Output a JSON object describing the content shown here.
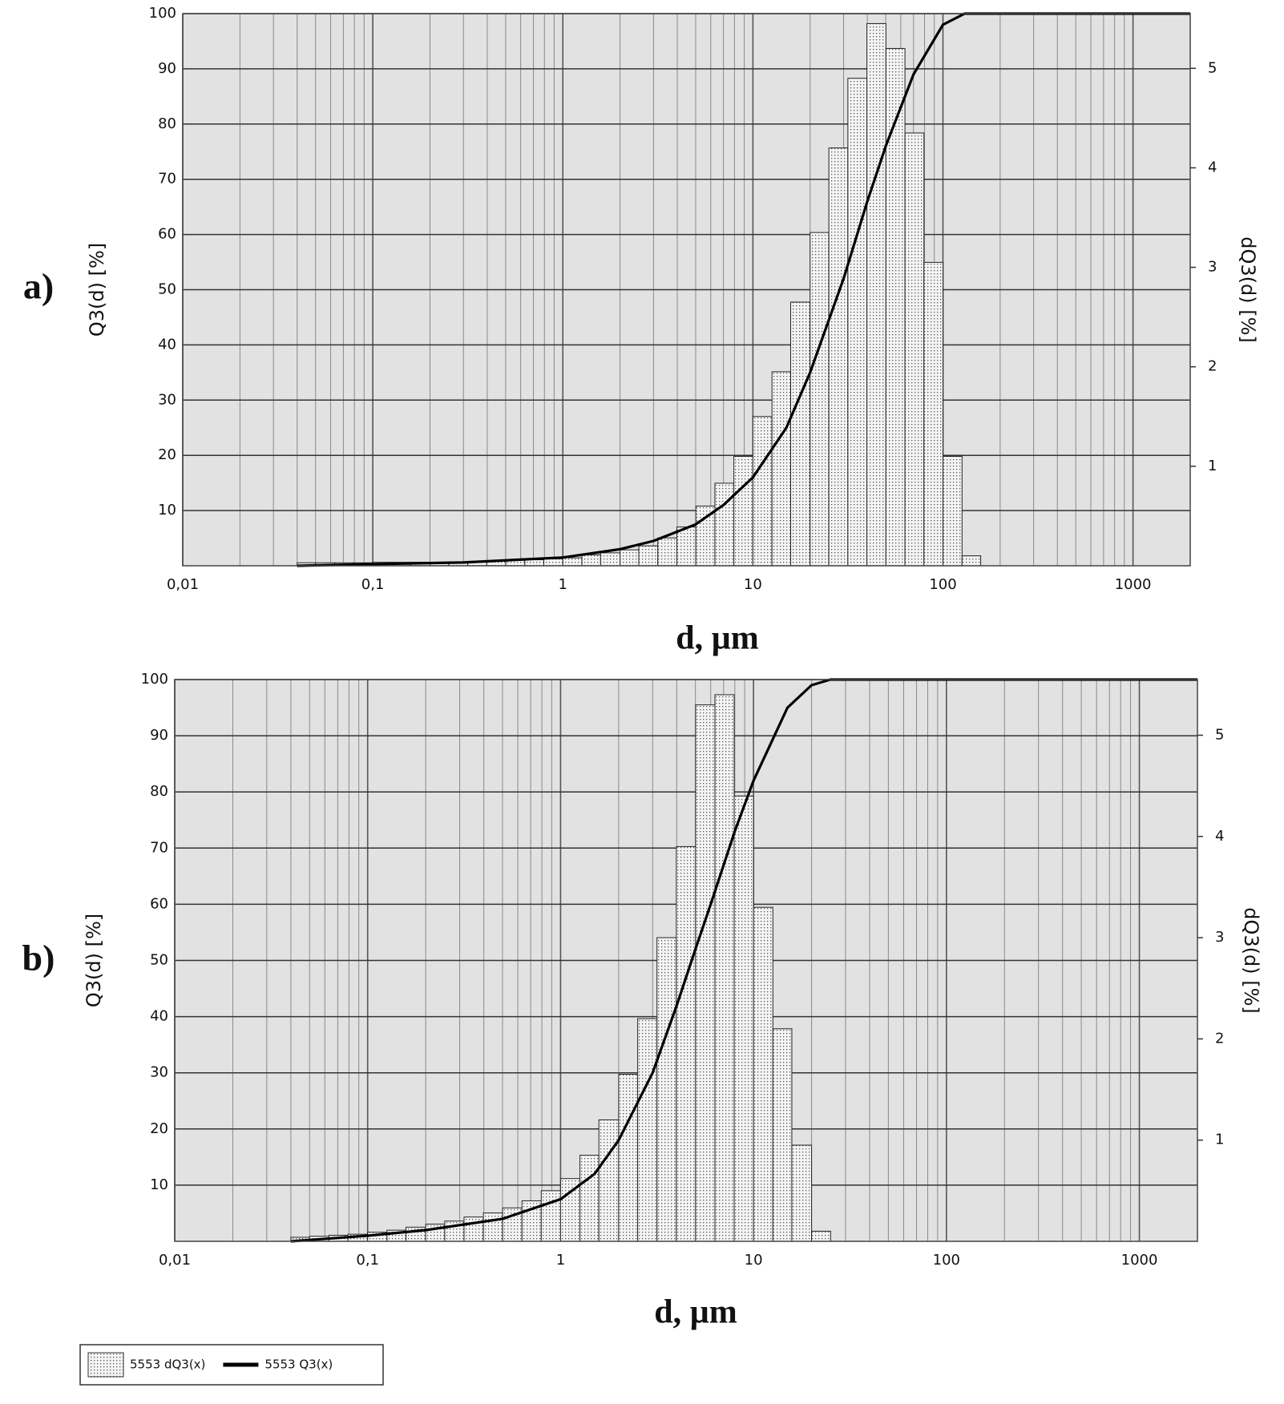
{
  "chart_data": [
    {
      "type": "histogram",
      "panel_label": "a)",
      "xlabel": "d, µm",
      "ylabel": "Q3(d) [%]",
      "y2label": "dQ3(d) [%]",
      "xscale": "log",
      "xlim": [
        0.01,
        2000
      ],
      "xticks": [
        {
          "value": 0.01,
          "label": "0,01"
        },
        {
          "value": 0.1,
          "label": "0,1"
        },
        1,
        10,
        100,
        1000
      ],
      "ylim": [
        0,
        100
      ],
      "yticks": [
        10,
        20,
        30,
        40,
        50,
        60,
        70,
        80,
        90,
        100
      ],
      "y2lim": [
        0,
        5.55
      ],
      "y2ticks": [
        1,
        2,
        3,
        4,
        5
      ],
      "grid": true,
      "bins": [
        0.04,
        0.05,
        0.063,
        0.079,
        0.1,
        0.126,
        0.158,
        0.2,
        0.251,
        0.316,
        0.398,
        0.501,
        0.631,
        0.794,
        1,
        1.26,
        1.58,
        2,
        2.51,
        3.16,
        3.98,
        5.01,
        6.31,
        7.94,
        10,
        12.6,
        15.8,
        20,
        25.1,
        31.6,
        39.8,
        50.1,
        63.1,
        79.4,
        100,
        126,
        158
      ],
      "series": [
        {
          "color": "#555555",
          "axis": "y2",
          "values": [
            0.03,
            0.03,
            0.03,
            0.03,
            0.035,
            0.035,
            0.035,
            0.035,
            0.04,
            0.045,
            0.05,
            0.055,
            0.06,
            0.07,
            0.08,
            0.11,
            0.13,
            0.16,
            0.2,
            0.28,
            0.39,
            0.6,
            0.83,
            1.1,
            1.5,
            1.95,
            2.65,
            3.35,
            4.2,
            4.9,
            5.45,
            5.2,
            4.35,
            3.05,
            1.1,
            0.1
          ]
        },
        {
          "type": "line",
          "color": "#000000",
          "x": [
            0.04,
            0.1,
            0.3,
            1,
            2,
            3,
            5,
            7,
            10,
            15,
            20,
            30,
            40,
            50,
            70,
            100,
            130,
            2000
          ],
          "values": [
            0,
            0.3,
            0.6,
            1.5,
            3,
            4.5,
            7.5,
            11,
            16,
            25,
            35,
            52,
            66,
            76,
            89,
            98,
            100,
            100
          ]
        }
      ]
    },
    {
      "type": "histogram",
      "panel_label": "b)",
      "xlabel": "d, µm",
      "ylabel": "Q3(d) [%]",
      "y2label": "dQ3(d) [%]",
      "xscale": "log",
      "xlim": [
        0.01,
        2000
      ],
      "xticks": [
        {
          "value": 0.01,
          "label": "0,01"
        },
        {
          "value": 0.1,
          "label": "0,1"
        },
        1,
        10,
        100,
        1000
      ],
      "ylim": [
        0,
        100
      ],
      "yticks": [
        10,
        20,
        30,
        40,
        50,
        60,
        70,
        80,
        90,
        100
      ],
      "y2lim": [
        0,
        5.55
      ],
      "y2ticks": [
        1,
        2,
        3,
        4,
        5
      ],
      "grid": true,
      "bins": [
        0.04,
        0.05,
        0.063,
        0.079,
        0.1,
        0.126,
        0.158,
        0.2,
        0.251,
        0.316,
        0.398,
        0.501,
        0.631,
        0.794,
        1,
        1.26,
        1.58,
        2,
        2.51,
        3.16,
        3.98,
        5.01,
        6.31,
        7.94,
        10,
        12.6,
        15.8,
        20,
        25.1
      ],
      "series": [
        {
          "name": "5553 dQ3(x)",
          "color": "#555555",
          "axis": "y2",
          "values": [
            0.04,
            0.05,
            0.06,
            0.07,
            0.09,
            0.11,
            0.14,
            0.17,
            0.2,
            0.24,
            0.28,
            0.33,
            0.4,
            0.5,
            0.62,
            0.85,
            1.2,
            1.65,
            2.2,
            3.0,
            3.9,
            5.3,
            5.4,
            4.4,
            3.3,
            2.1,
            0.95,
            0.1
          ]
        },
        {
          "name": "5553 Q3(x)",
          "type": "line",
          "color": "#000000",
          "x": [
            0.04,
            0.1,
            0.2,
            0.5,
            1,
            1.5,
            2,
            3,
            4,
            5,
            6,
            8,
            10,
            15,
            20,
            25,
            2000
          ],
          "values": [
            0,
            1,
            2,
            4,
            7.5,
            12,
            18,
            30,
            42,
            52,
            60,
            73,
            82,
            95,
            99,
            100,
            100
          ]
        }
      ]
    }
  ]
}
